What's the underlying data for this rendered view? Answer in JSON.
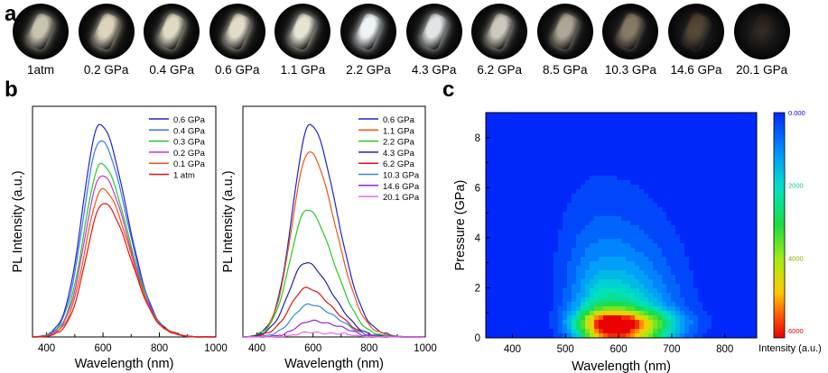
{
  "panels": {
    "a": "a",
    "b": "b",
    "c": "c"
  },
  "photos": {
    "labels": [
      "1atm",
      "0.2 GPa",
      "0.4 GPa",
      "0.6 GPa",
      "1.1 GPa",
      "2.2 GPa",
      "4.3 GPa",
      "6.2 GPa",
      "8.5 GPa",
      "10.3 GPa",
      "14.6 GPa",
      "20.1 GPa"
    ],
    "brightness": [
      0.85,
      0.9,
      0.92,
      0.93,
      0.95,
      1.0,
      0.96,
      0.88,
      0.75,
      0.6,
      0.4,
      0.15
    ],
    "tint": [
      "#e8e0c8",
      "#efe6cc",
      "#f0ead2",
      "#f0ead4",
      "#f2eedc",
      "#eef4f6",
      "#e8ecec",
      "#e6e0d2",
      "#ddd2bc",
      "#c9b394",
      "#a07c52",
      "#6a3a14"
    ]
  },
  "chart_data": [
    {
      "type": "line",
      "panel": "b-left",
      "xlabel": "Wavelength (nm)",
      "ylabel": "PL Intensity (a.u.)",
      "xlim": [
        350,
        1000
      ],
      "xticks": [
        400,
        600,
        800,
        1000
      ],
      "series": [
        {
          "name": "0.6 GPa",
          "color": "#2222cc",
          "peak": 0.92,
          "center": 590
        },
        {
          "name": "0.4 GPa",
          "color": "#3377ee",
          "peak": 0.85,
          "center": 592
        },
        {
          "name": "0.3 GPa",
          "color": "#22cc22",
          "peak": 0.75,
          "center": 595
        },
        {
          "name": "0.2 GPa",
          "color": "#cc33cc",
          "peak": 0.7,
          "center": 597
        },
        {
          "name": "0.1 GPa",
          "color": "#ee5511",
          "peak": 0.64,
          "center": 600
        },
        {
          "name": "1 atm",
          "color": "#ee1111",
          "peak": 0.58,
          "center": 603
        }
      ]
    },
    {
      "type": "line",
      "panel": "b-right",
      "xlabel": "Wavelength (nm)",
      "ylabel": "PL Intensity (a.u.)",
      "xlim": [
        350,
        1000
      ],
      "xticks": [
        400,
        600,
        800,
        1000
      ],
      "series": [
        {
          "name": "0.6 GPa",
          "color": "#2222cc",
          "peak": 0.92,
          "center": 590
        },
        {
          "name": "1.1 GPa",
          "color": "#ee5511",
          "peak": 0.8,
          "center": 587
        },
        {
          "name": "2.2 GPa",
          "color": "#22cc22",
          "peak": 0.55,
          "center": 580
        },
        {
          "name": "4.3 GPa",
          "color": "#2222aa",
          "peak": 0.32,
          "center": 575
        },
        {
          "name": "6.2 GPa",
          "color": "#dd1111",
          "peak": 0.21,
          "center": 578
        },
        {
          "name": "10.3 GPa",
          "color": "#3388dd",
          "peak": 0.14,
          "center": 590
        },
        {
          "name": "14.6 GPa",
          "color": "#9922dd",
          "peak": 0.07,
          "center": 605
        },
        {
          "name": "20.1 GPa",
          "color": "#ee66ee",
          "peak": 0.02,
          "center": 610
        }
      ]
    },
    {
      "type": "heatmap",
      "panel": "c",
      "xlabel": "Wavelength (nm)",
      "ylabel": "Pressure (GPa)",
      "xlim": [
        350,
        860
      ],
      "ylim": [
        0,
        9
      ],
      "xticks": [
        400,
        500,
        600,
        700,
        800
      ],
      "yticks": [
        0,
        2,
        4,
        6,
        8
      ],
      "colorbar": {
        "label": "Intensity (a.u.)",
        "ticks": [
          "0.000",
          "2000",
          "4000",
          "6000"
        ],
        "range": [
          0,
          6200
        ]
      }
    }
  ]
}
